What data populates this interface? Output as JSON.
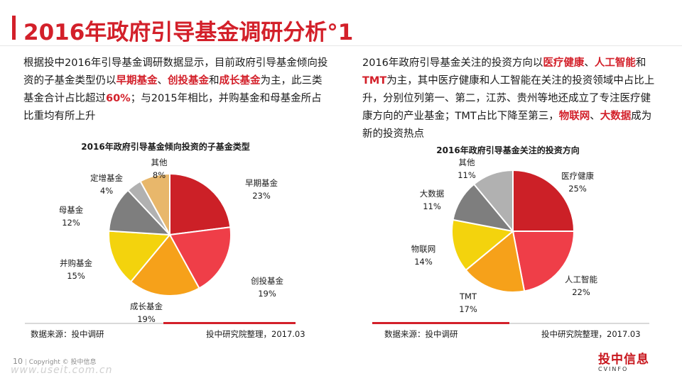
{
  "title": "2016年政府引导基金调研分析°1",
  "left_paragraph": [
    {
      "t": "根据投中2016年引导基金调研数据显示，目前政府引导基金倾向投资的子基金类型仍以",
      "h": false
    },
    {
      "t": "早期基金",
      "h": true
    },
    {
      "t": "、",
      "h": false
    },
    {
      "t": "创投基金",
      "h": true
    },
    {
      "t": "和",
      "h": false
    },
    {
      "t": "成长基金",
      "h": true
    },
    {
      "t": "为主，此三类基金合计占比超过",
      "h": false
    },
    {
      "t": "60%",
      "h": true
    },
    {
      "t": "；与2015年相比，并购基金和母基金所占比重均有所上升",
      "h": false
    }
  ],
  "right_paragraph": [
    {
      "t": "2016年政府引导基金关注的投资方向以",
      "h": false
    },
    {
      "t": "医疗健康",
      "h": true
    },
    {
      "t": "、",
      "h": false
    },
    {
      "t": "人工智能",
      "h": true
    },
    {
      "t": "和",
      "h": false
    },
    {
      "t": "TMT",
      "h": true
    },
    {
      "t": "为主，其中医疗健康和人工智能在关注的投资领域中占比上升，分别位列第一、第二，江苏、贵州等地还成立了专注医疗健康方向的产业基金；TMT占比下降至第三，",
      "h": false
    },
    {
      "t": "物联网",
      "h": true
    },
    {
      "t": "、",
      "h": false
    },
    {
      "t": "大数据",
      "h": true
    },
    {
      "t": "成为新的投资热点",
      "h": false
    }
  ],
  "chart_data": [
    {
      "type": "pie",
      "title": "2016年政府引导基金倾向投资的子基金类型",
      "categories": [
        "早期基金",
        "创投基金",
        "成长基金",
        "并购基金",
        "母基金",
        "定增基金",
        "其他"
      ],
      "values": [
        23,
        19,
        19,
        15,
        12,
        4,
        8
      ],
      "value_labels": [
        "23%",
        "19%",
        "19%",
        "15%",
        "12%",
        "4%",
        "8%"
      ],
      "colors": [
        "#cc2027",
        "#ef3e48",
        "#f6a11a",
        "#f3d30d",
        "#7e7e7e",
        "#b1b1b1",
        "#e8b76b"
      ],
      "source_left": "数据来源：投中调研",
      "source_right": "投中研究院整理，2017.03"
    },
    {
      "type": "pie",
      "title": "2016年政府引导基金关注的投资方向",
      "categories": [
        "医疗健康",
        "人工智能",
        "TMT",
        "物联网",
        "大数据",
        "其他"
      ],
      "values": [
        25,
        22,
        17,
        14,
        11,
        11
      ],
      "value_labels": [
        "25%",
        "22%",
        "17%",
        "14%",
        "11%",
        "11%"
      ],
      "colors": [
        "#cc2027",
        "#ef3e48",
        "#f6a11a",
        "#f3d30d",
        "#7e7e7e",
        "#b1b1b1"
      ],
      "source_left": "数据来源：投中调研",
      "source_right": "投中研究院整理，2017.03"
    }
  ],
  "footer": {
    "page": "10",
    "copyright": "Copyright © 投中信息"
  },
  "logo": {
    "cn": "投中信息",
    "en": "CVINFO"
  },
  "watermark": "www.useit.com.cn"
}
